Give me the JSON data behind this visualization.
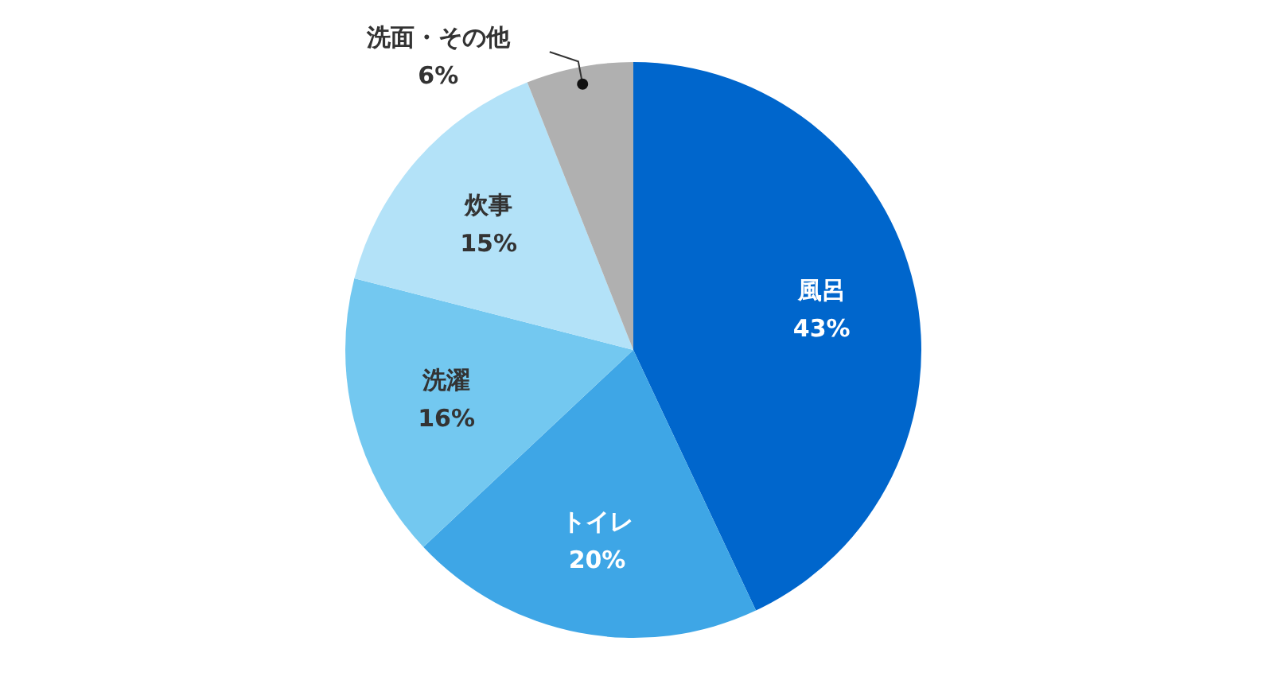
{
  "chart_data": {
    "type": "pie",
    "categories": [
      "風呂",
      "トイレ",
      "洗濯",
      "炊事",
      "洗面・その他"
    ],
    "values": [
      43,
      20,
      16,
      15,
      6
    ],
    "colors": [
      "#0066cc",
      "#3ea6e6",
      "#73c8f0",
      "#b3e2f8",
      "#b0b0b0"
    ],
    "value_labels": [
      "43%",
      "20%",
      "16%",
      "15%",
      "6%"
    ],
    "legend": false
  }
}
